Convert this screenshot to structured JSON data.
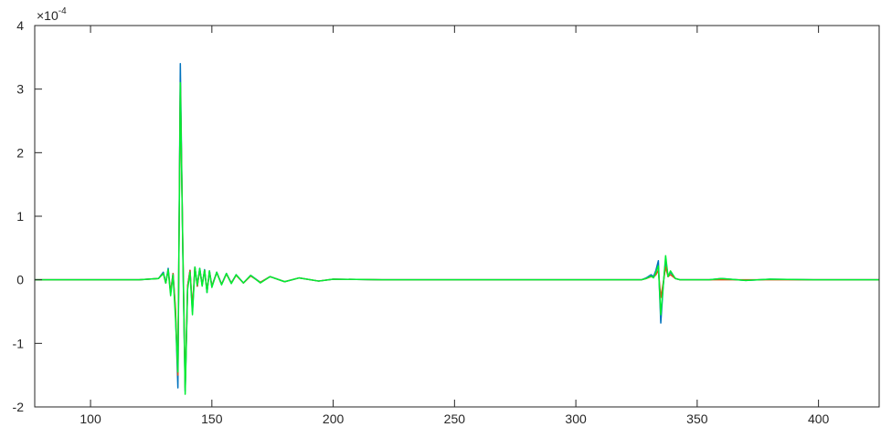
{
  "chart_data": {
    "type": "line",
    "title": "",
    "xlabel": "",
    "ylabel": "",
    "xlim": [
      77,
      425
    ],
    "ylim": [
      -2,
      4
    ],
    "xticks": [
      100,
      150,
      200,
      250,
      300,
      350,
      400
    ],
    "yticks": [
      -2,
      -1,
      0,
      1,
      2,
      3,
      4
    ],
    "y_exponent": "×10^-4",
    "y_exponent_base": "×10",
    "y_exponent_power": "-4",
    "grid": false,
    "legend": "none",
    "series": [
      {
        "color": "#0072bd",
        "points": [
          [
            77,
            0
          ],
          [
            120,
            0
          ],
          [
            128,
            0.02
          ],
          [
            130,
            0.12
          ],
          [
            131,
            -0.05
          ],
          [
            132,
            0.18
          ],
          [
            133,
            -0.2
          ],
          [
            134,
            0.1
          ],
          [
            135,
            -0.5
          ],
          [
            136,
            -1.7
          ],
          [
            137,
            3.4
          ],
          [
            138,
            0.5
          ],
          [
            139,
            -1.75
          ],
          [
            140,
            -0.1
          ],
          [
            141,
            0.15
          ],
          [
            142,
            -0.5
          ],
          [
            143,
            0.2
          ],
          [
            144,
            -0.1
          ],
          [
            145,
            0.18
          ],
          [
            146,
            -0.08
          ],
          [
            147,
            0.16
          ],
          [
            148,
            -0.2
          ],
          [
            149,
            0.14
          ],
          [
            150,
            -0.1
          ],
          [
            152,
            0.12
          ],
          [
            154,
            -0.07
          ],
          [
            156,
            0.1
          ],
          [
            158,
            -0.05
          ],
          [
            160,
            0.08
          ],
          [
            163,
            -0.05
          ],
          [
            166,
            0.07
          ],
          [
            170,
            -0.04
          ],
          [
            174,
            0.05
          ],
          [
            180,
            -0.03
          ],
          [
            186,
            0.03
          ],
          [
            194,
            -0.02
          ],
          [
            200,
            0.01
          ],
          [
            220,
            0
          ],
          [
            327,
            0
          ],
          [
            329,
            0.03
          ],
          [
            331,
            0.08
          ],
          [
            332,
            0.05
          ],
          [
            333,
            0.15
          ],
          [
            334,
            0.3
          ],
          [
            335,
            -0.68
          ],
          [
            336,
            -0.1
          ],
          [
            337,
            0.32
          ],
          [
            338,
            0.05
          ],
          [
            339,
            0.12
          ],
          [
            341,
            0.02
          ],
          [
            343,
            0
          ],
          [
            355,
            0
          ],
          [
            360,
            0.02
          ],
          [
            370,
            -0.01
          ],
          [
            380,
            0.01
          ],
          [
            400,
            0
          ],
          [
            425,
            0
          ]
        ]
      },
      {
        "color": "#d95319",
        "points": [
          [
            77,
            0
          ],
          [
            120,
            0
          ],
          [
            128,
            0.02
          ],
          [
            130,
            0.1
          ],
          [
            131,
            -0.05
          ],
          [
            132,
            0.15
          ],
          [
            133,
            -0.2
          ],
          [
            134,
            0.1
          ],
          [
            135,
            -0.45
          ],
          [
            136,
            -1.5
          ],
          [
            137,
            3.1
          ],
          [
            138,
            0.6
          ],
          [
            139,
            -1.7
          ],
          [
            140,
            -0.1
          ],
          [
            141,
            0.15
          ],
          [
            142,
            -0.45
          ],
          [
            143,
            0.2
          ],
          [
            144,
            -0.1
          ],
          [
            145,
            0.16
          ],
          [
            146,
            -0.08
          ],
          [
            147,
            0.15
          ],
          [
            148,
            -0.18
          ],
          [
            149,
            0.13
          ],
          [
            150,
            -0.1
          ],
          [
            152,
            0.11
          ],
          [
            154,
            -0.07
          ],
          [
            156,
            0.09
          ],
          [
            158,
            -0.05
          ],
          [
            160,
            0.07
          ],
          [
            163,
            -0.05
          ],
          [
            166,
            0.06
          ],
          [
            170,
            -0.04
          ],
          [
            174,
            0.05
          ],
          [
            180,
            -0.03
          ],
          [
            186,
            0.03
          ],
          [
            194,
            -0.02
          ],
          [
            200,
            0.01
          ],
          [
            220,
            0
          ],
          [
            327,
            0
          ],
          [
            329,
            0.02
          ],
          [
            331,
            0.05
          ],
          [
            332,
            0.04
          ],
          [
            333,
            0.08
          ],
          [
            334,
            0.15
          ],
          [
            335,
            -0.28
          ],
          [
            336,
            -0.05
          ],
          [
            337,
            0.2
          ],
          [
            338,
            0.05
          ],
          [
            339,
            0.08
          ],
          [
            341,
            0.02
          ],
          [
            343,
            0
          ],
          [
            425,
            0
          ]
        ]
      },
      {
        "color": "#00ee33",
        "points": [
          [
            77,
            0
          ],
          [
            120,
            0
          ],
          [
            128,
            0.02
          ],
          [
            130,
            0.1
          ],
          [
            131,
            -0.05
          ],
          [
            132,
            0.16
          ],
          [
            133,
            -0.25
          ],
          [
            134,
            0.08
          ],
          [
            135,
            -0.6
          ],
          [
            136,
            -1.45
          ],
          [
            137,
            3.1
          ],
          [
            138,
            0.55
          ],
          [
            139,
            -1.8
          ],
          [
            140,
            -0.15
          ],
          [
            141,
            0.12
          ],
          [
            142,
            -0.55
          ],
          [
            143,
            0.2
          ],
          [
            144,
            -0.08
          ],
          [
            145,
            0.18
          ],
          [
            146,
            -0.1
          ],
          [
            147,
            0.15
          ],
          [
            148,
            -0.2
          ],
          [
            149,
            0.14
          ],
          [
            150,
            -0.12
          ],
          [
            152,
            0.12
          ],
          [
            154,
            -0.08
          ],
          [
            156,
            0.1
          ],
          [
            158,
            -0.06
          ],
          [
            160,
            0.08
          ],
          [
            163,
            -0.05
          ],
          [
            166,
            0.07
          ],
          [
            170,
            -0.05
          ],
          [
            174,
            0.05
          ],
          [
            180,
            -0.03
          ],
          [
            186,
            0.03
          ],
          [
            194,
            -0.02
          ],
          [
            200,
            0.01
          ],
          [
            220,
            0
          ],
          [
            327,
            0
          ],
          [
            329,
            0.02
          ],
          [
            331,
            0.06
          ],
          [
            332,
            0.03
          ],
          [
            333,
            0.12
          ],
          [
            334,
            0.22
          ],
          [
            335,
            -0.55
          ],
          [
            336,
            -0.1
          ],
          [
            337,
            0.38
          ],
          [
            338,
            0.05
          ],
          [
            339,
            0.14
          ],
          [
            341,
            0.02
          ],
          [
            343,
            0
          ],
          [
            355,
            0
          ],
          [
            360,
            0.02
          ],
          [
            370,
            -0.01
          ],
          [
            380,
            0.01
          ],
          [
            400,
            0
          ],
          [
            425,
            0
          ]
        ]
      }
    ]
  }
}
